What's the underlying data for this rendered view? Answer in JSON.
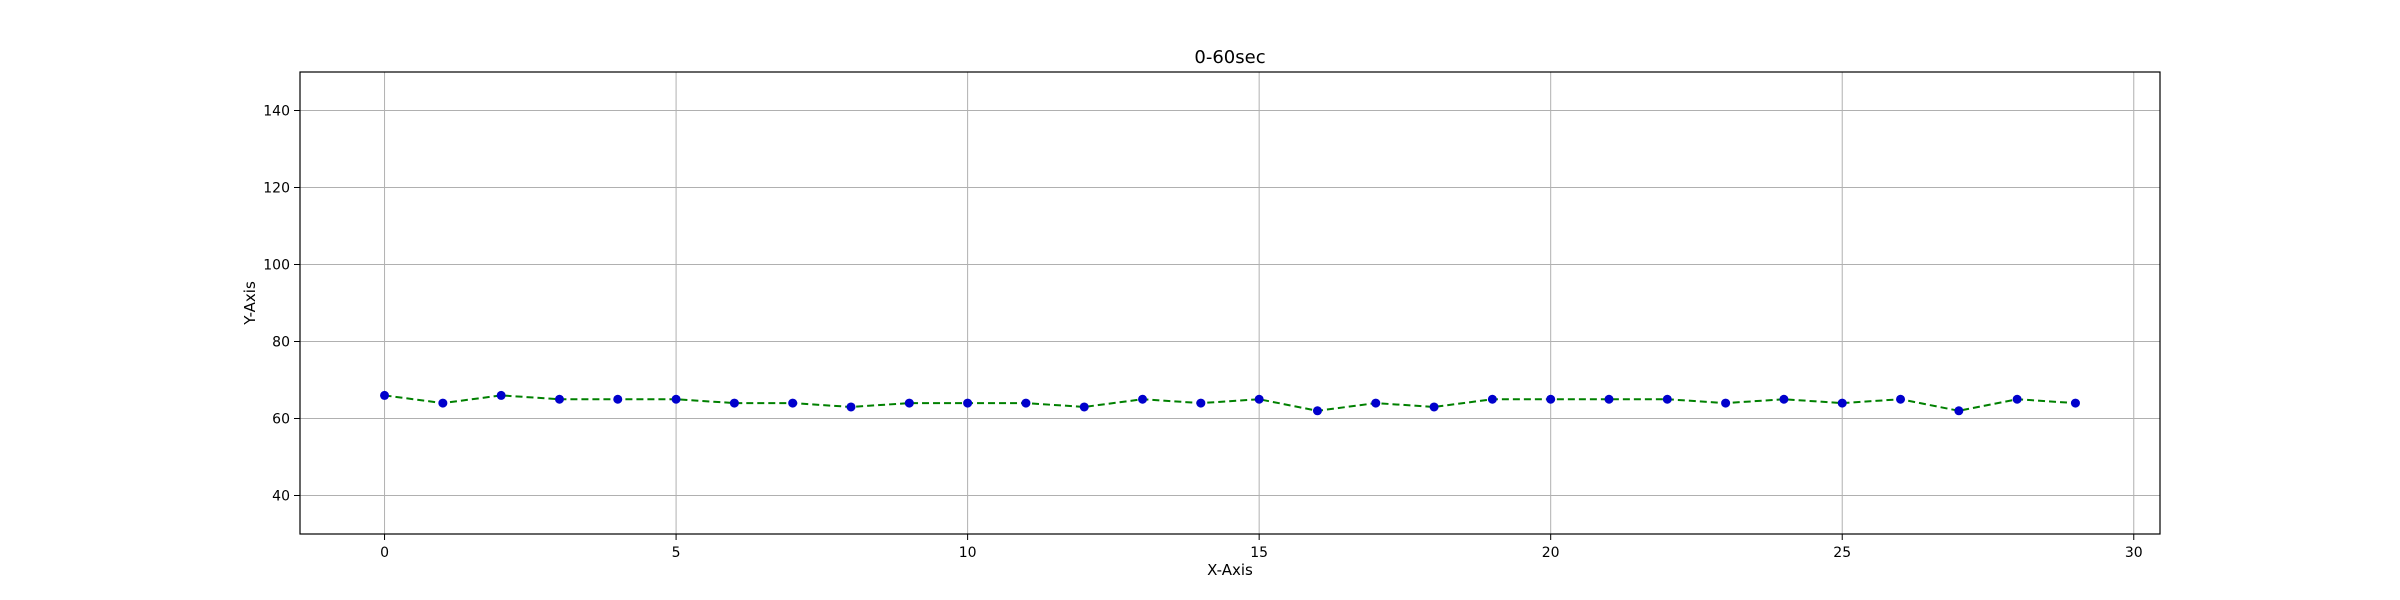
{
  "chart_data": {
    "type": "line",
    "title": "0-60sec",
    "xlabel": "X-Axis",
    "ylabel": "Y-Axis",
    "xlim": [
      -1.45,
      30.45
    ],
    "ylim": [
      30,
      150
    ],
    "x_ticks": [
      0,
      5,
      10,
      15,
      20,
      25,
      30
    ],
    "y_ticks": [
      40,
      60,
      80,
      100,
      120,
      140
    ],
    "grid": true,
    "series": [
      {
        "x": [
          0,
          1,
          2,
          3,
          4,
          5,
          6,
          7,
          8,
          9,
          10,
          11,
          12,
          13,
          14,
          15,
          16,
          17,
          18,
          19,
          20,
          21,
          22,
          23,
          24,
          25,
          26,
          27,
          28,
          29
        ],
        "values": [
          66,
          64,
          66,
          65,
          65,
          65,
          64,
          64,
          63,
          64,
          64,
          64,
          63,
          65,
          64,
          65,
          62,
          64,
          63,
          65,
          65,
          65,
          65,
          64,
          65,
          64,
          65,
          62,
          65,
          64
        ],
        "line_color": "#008000",
        "line_style": "dashed",
        "marker_color": "#0000cc",
        "marker": "circle"
      }
    ]
  },
  "colors": {
    "grid": "#b0b0b0",
    "frame": "#000000",
    "background": "#ffffff"
  }
}
